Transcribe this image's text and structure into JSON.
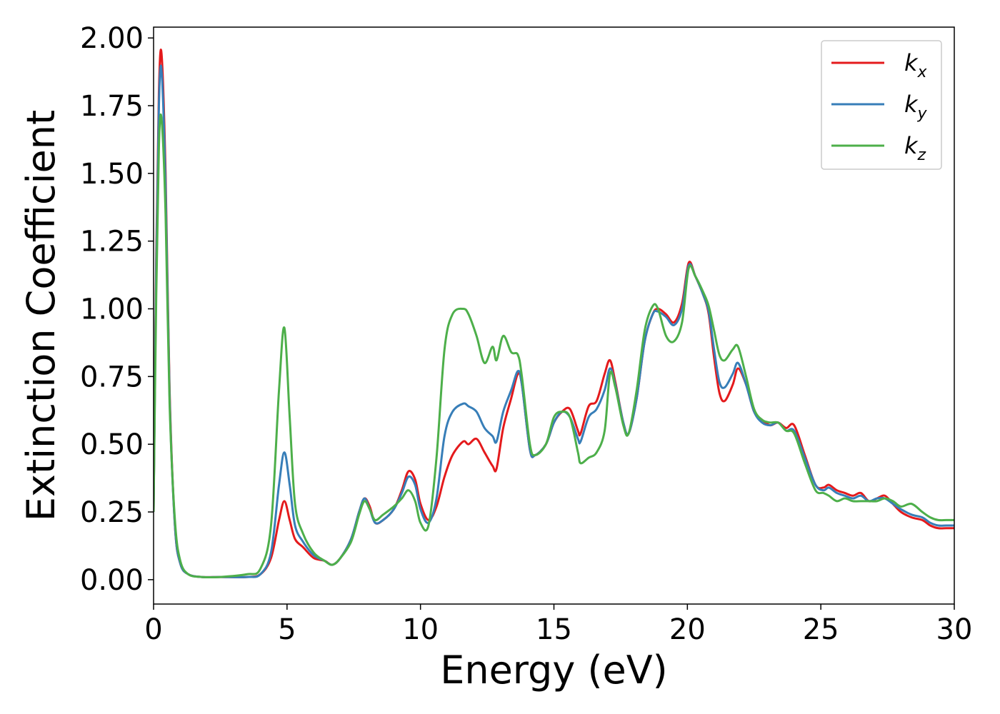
{
  "chart_data": {
    "type": "line",
    "xlabel": "Energy (eV)",
    "ylabel": "Extinction Coefficient",
    "xlim": [
      0,
      30
    ],
    "ylim": [
      -0.09,
      2.04
    ],
    "xticks": [
      "0",
      "5",
      "10",
      "15",
      "20",
      "25",
      "30"
    ],
    "yticks": [
      "0.00",
      "0.25",
      "0.50",
      "0.75",
      "1.00",
      "1.25",
      "1.50",
      "1.75",
      "2.00"
    ],
    "grid": false,
    "legend_position": "top-right",
    "series": [
      {
        "name": "k",
        "subscript": "x",
        "color": "#e41a1c",
        "x": [
          0,
          0.1,
          0.2,
          0.3,
          0.45,
          0.6,
          0.8,
          1.0,
          1.3,
          1.8,
          2.5,
          3.5,
          4.0,
          4.4,
          4.7,
          4.9,
          5.1,
          5.3,
          5.6,
          6.0,
          6.4,
          6.7,
          7.0,
          7.4,
          7.7,
          7.9,
          8.1,
          8.3,
          8.6,
          9.0,
          9.3,
          9.55,
          9.8,
          10.0,
          10.3,
          10.6,
          10.9,
          11.2,
          11.6,
          11.8,
          12.1,
          12.4,
          12.7,
          12.85,
          13.1,
          13.4,
          13.65,
          13.8,
          14.1,
          14.3,
          14.7,
          15.0,
          15.3,
          15.6,
          15.9,
          16.0,
          16.3,
          16.6,
          16.9,
          17.1,
          17.3,
          17.6,
          17.8,
          18.1,
          18.4,
          18.7,
          18.9,
          19.2,
          19.5,
          19.8,
          20.05,
          20.3,
          20.6,
          20.8,
          21.0,
          21.2,
          21.4,
          21.7,
          21.9,
          22.2,
          22.5,
          22.8,
          23.1,
          23.4,
          23.7,
          24.0,
          24.4,
          24.8,
          25.1,
          25.3,
          25.6,
          25.9,
          26.2,
          26.5,
          26.8,
          27.1,
          27.4,
          27.7,
          28.0,
          28.4,
          28.8,
          29.1,
          29.4,
          29.7,
          30.0
        ],
        "y": [
          0.25,
          1.2,
          1.8,
          1.94,
          1.5,
          0.7,
          0.2,
          0.06,
          0.02,
          0.01,
          0.01,
          0.01,
          0.02,
          0.08,
          0.22,
          0.29,
          0.22,
          0.15,
          0.12,
          0.08,
          0.07,
          0.055,
          0.08,
          0.15,
          0.25,
          0.3,
          0.27,
          0.21,
          0.22,
          0.26,
          0.33,
          0.4,
          0.37,
          0.28,
          0.22,
          0.27,
          0.38,
          0.46,
          0.51,
          0.5,
          0.52,
          0.47,
          0.42,
          0.41,
          0.56,
          0.67,
          0.76,
          0.72,
          0.48,
          0.46,
          0.5,
          0.58,
          0.62,
          0.63,
          0.55,
          0.54,
          0.64,
          0.66,
          0.76,
          0.81,
          0.73,
          0.58,
          0.54,
          0.67,
          0.88,
          0.98,
          1.0,
          0.98,
          0.95,
          1.02,
          1.17,
          1.12,
          1.05,
          0.98,
          0.82,
          0.69,
          0.66,
          0.72,
          0.78,
          0.72,
          0.62,
          0.59,
          0.57,
          0.58,
          0.56,
          0.57,
          0.46,
          0.35,
          0.34,
          0.35,
          0.33,
          0.32,
          0.31,
          0.32,
          0.29,
          0.3,
          0.31,
          0.28,
          0.25,
          0.23,
          0.22,
          0.2,
          0.19,
          0.19,
          0.19
        ]
      },
      {
        "name": "k",
        "subscript": "y",
        "color": "#377eb8",
        "x": [
          0,
          0.1,
          0.2,
          0.3,
          0.45,
          0.6,
          0.8,
          1.0,
          1.3,
          1.8,
          2.5,
          3.5,
          4.0,
          4.4,
          4.7,
          4.9,
          5.1,
          5.3,
          5.6,
          6.0,
          6.4,
          6.7,
          7.0,
          7.4,
          7.7,
          7.9,
          8.1,
          8.3,
          8.6,
          9.0,
          9.3,
          9.55,
          9.8,
          10.0,
          10.3,
          10.6,
          10.9,
          11.2,
          11.6,
          11.8,
          12.1,
          12.4,
          12.7,
          12.85,
          13.1,
          13.4,
          13.65,
          13.8,
          14.1,
          14.3,
          14.7,
          15.0,
          15.3,
          15.6,
          15.9,
          16.0,
          16.3,
          16.6,
          16.9,
          17.1,
          17.3,
          17.6,
          17.8,
          18.1,
          18.4,
          18.7,
          18.9,
          19.2,
          19.5,
          19.8,
          20.05,
          20.3,
          20.6,
          20.8,
          21.0,
          21.2,
          21.4,
          21.7,
          21.9,
          22.2,
          22.5,
          22.8,
          23.1,
          23.4,
          23.7,
          24.0,
          24.4,
          24.8,
          25.1,
          25.3,
          25.6,
          25.9,
          26.2,
          26.5,
          26.8,
          27.1,
          27.4,
          27.7,
          28.0,
          28.4,
          28.8,
          29.1,
          29.4,
          29.7,
          30.0
        ],
        "y": [
          0.25,
          1.15,
          1.75,
          1.88,
          1.45,
          0.68,
          0.2,
          0.06,
          0.02,
          0.01,
          0.01,
          0.01,
          0.02,
          0.1,
          0.35,
          0.47,
          0.35,
          0.2,
          0.14,
          0.09,
          0.07,
          0.055,
          0.08,
          0.15,
          0.25,
          0.3,
          0.26,
          0.21,
          0.22,
          0.26,
          0.32,
          0.38,
          0.35,
          0.26,
          0.21,
          0.3,
          0.53,
          0.62,
          0.65,
          0.64,
          0.62,
          0.56,
          0.53,
          0.51,
          0.62,
          0.7,
          0.77,
          0.72,
          0.48,
          0.46,
          0.5,
          0.58,
          0.62,
          0.6,
          0.52,
          0.51,
          0.6,
          0.63,
          0.7,
          0.78,
          0.72,
          0.58,
          0.54,
          0.67,
          0.88,
          0.98,
          0.99,
          0.97,
          0.94,
          1.0,
          1.16,
          1.12,
          1.05,
          0.99,
          0.85,
          0.73,
          0.71,
          0.76,
          0.8,
          0.72,
          0.62,
          0.58,
          0.57,
          0.58,
          0.55,
          0.55,
          0.45,
          0.35,
          0.33,
          0.34,
          0.32,
          0.31,
          0.3,
          0.31,
          0.29,
          0.3,
          0.3,
          0.28,
          0.26,
          0.24,
          0.23,
          0.21,
          0.2,
          0.2,
          0.2
        ]
      },
      {
        "name": "k",
        "subscript": "z",
        "color": "#4daf4a",
        "x": [
          0,
          0.1,
          0.2,
          0.3,
          0.45,
          0.6,
          0.8,
          1.0,
          1.3,
          1.8,
          2.5,
          3.5,
          4.0,
          4.4,
          4.7,
          4.9,
          5.1,
          5.3,
          5.6,
          6.0,
          6.4,
          6.7,
          7.0,
          7.4,
          7.7,
          7.9,
          8.1,
          8.3,
          8.6,
          9.0,
          9.3,
          9.55,
          9.8,
          10.0,
          10.3,
          10.6,
          10.9,
          11.2,
          11.6,
          11.8,
          12.1,
          12.4,
          12.7,
          12.85,
          13.1,
          13.4,
          13.65,
          13.8,
          14.1,
          14.3,
          14.7,
          15.0,
          15.3,
          15.6,
          15.9,
          16.0,
          16.3,
          16.6,
          16.9,
          17.1,
          17.3,
          17.6,
          17.8,
          18.1,
          18.4,
          18.7,
          18.9,
          19.2,
          19.5,
          19.8,
          20.05,
          20.3,
          20.6,
          20.8,
          21.0,
          21.2,
          21.4,
          21.7,
          21.9,
          22.2,
          22.5,
          22.8,
          23.1,
          23.4,
          23.7,
          24.0,
          24.4,
          24.8,
          25.1,
          25.3,
          25.6,
          25.9,
          26.2,
          26.5,
          26.8,
          27.1,
          27.4,
          27.7,
          28.0,
          28.4,
          28.8,
          29.1,
          29.4,
          29.7,
          30.0
        ],
        "y": [
          0.25,
          1.05,
          1.6,
          1.7,
          1.35,
          0.65,
          0.22,
          0.07,
          0.02,
          0.01,
          0.01,
          0.02,
          0.04,
          0.2,
          0.7,
          0.93,
          0.6,
          0.28,
          0.17,
          0.1,
          0.07,
          0.055,
          0.08,
          0.14,
          0.24,
          0.29,
          0.26,
          0.22,
          0.24,
          0.27,
          0.3,
          0.33,
          0.29,
          0.21,
          0.2,
          0.45,
          0.85,
          0.98,
          1.0,
          0.98,
          0.9,
          0.8,
          0.86,
          0.81,
          0.9,
          0.84,
          0.83,
          0.75,
          0.5,
          0.46,
          0.5,
          0.6,
          0.62,
          0.6,
          0.47,
          0.43,
          0.45,
          0.47,
          0.55,
          0.76,
          0.71,
          0.57,
          0.54,
          0.7,
          0.92,
          1.01,
          1.0,
          0.9,
          0.88,
          0.95,
          1.15,
          1.12,
          1.06,
          1.01,
          0.92,
          0.83,
          0.81,
          0.85,
          0.86,
          0.75,
          0.63,
          0.59,
          0.58,
          0.58,
          0.55,
          0.54,
          0.43,
          0.33,
          0.32,
          0.31,
          0.29,
          0.3,
          0.29,
          0.29,
          0.29,
          0.29,
          0.3,
          0.29,
          0.27,
          0.28,
          0.25,
          0.23,
          0.22,
          0.22,
          0.22
        ]
      }
    ]
  }
}
